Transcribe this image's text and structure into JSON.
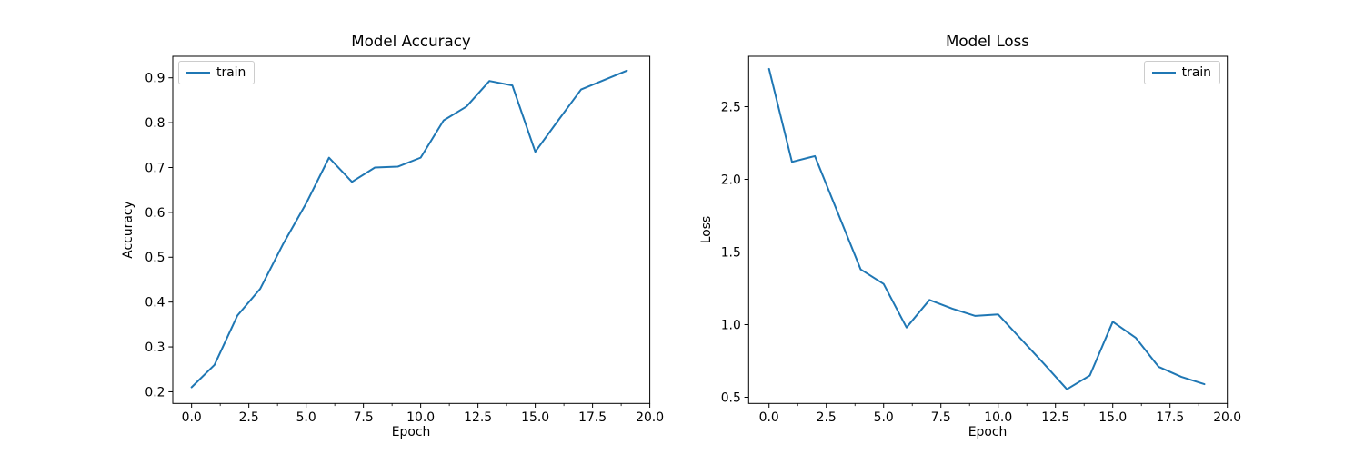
{
  "figure": {
    "background_color": "#ffffff",
    "text_color": "#000000",
    "accent_line_color": "#1f77b4"
  },
  "chart_data": [
    {
      "type": "line",
      "title": "Model Accuracy",
      "xlabel": "Epoch",
      "ylabel": "Accuracy",
      "legend_position": "top-left",
      "grid": false,
      "line_color": "#1f77b4",
      "x": [
        0,
        1,
        2,
        3,
        4,
        5,
        6,
        7,
        8,
        9,
        10,
        11,
        12,
        13,
        14,
        15,
        16,
        17,
        18,
        19
      ],
      "series": [
        {
          "name": "train",
          "values": [
            0.21,
            0.26,
            0.37,
            0.43,
            0.53,
            0.62,
            0.722,
            0.668,
            0.7,
            0.702,
            0.722,
            0.805,
            0.836,
            0.893,
            0.883,
            0.735,
            0.805,
            0.874,
            0.895,
            0.916
          ]
        }
      ],
      "xlim": [
        -0.82,
        20.0
      ],
      "ylim": [
        0.174,
        0.948
      ],
      "x_ticks": [
        0,
        2.5,
        5,
        7.5,
        10,
        12.5,
        15,
        17.5,
        20
      ],
      "x_tick_labels": [
        "0.0",
        "2.5",
        "5.0",
        "7.5",
        "10.0",
        "12.5",
        "15.0",
        "17.5",
        "20.0"
      ],
      "x_minor_tick_step": 1.25,
      "y_ticks": [
        0.2,
        0.3,
        0.4,
        0.5,
        0.6,
        0.7,
        0.8,
        0.9
      ],
      "y_tick_labels": [
        "0.2",
        "0.3",
        "0.4",
        "0.5",
        "0.6",
        "0.7",
        "0.8",
        "0.9"
      ]
    },
    {
      "type": "line",
      "title": "Model Loss",
      "xlabel": "Epoch",
      "ylabel": "Loss",
      "legend_position": "top-right",
      "grid": false,
      "line_color": "#1f77b4",
      "x": [
        0,
        1,
        2,
        3,
        4,
        5,
        6,
        7,
        8,
        9,
        10,
        11,
        12,
        13,
        14,
        15,
        16,
        17,
        18,
        19
      ],
      "series": [
        {
          "name": "train",
          "values": [
            2.76,
            2.12,
            2.16,
            1.77,
            1.38,
            1.28,
            0.98,
            1.17,
            1.11,
            1.06,
            1.07,
            0.9,
            0.73,
            0.555,
            0.65,
            1.02,
            0.91,
            0.71,
            0.64,
            0.59
          ]
        }
      ],
      "xlim": [
        -0.89,
        20.0
      ],
      "ylim": [
        0.4575,
        2.847
      ],
      "x_ticks": [
        0,
        2.5,
        5,
        7.5,
        10,
        12.5,
        15,
        17.5,
        20
      ],
      "x_tick_labels": [
        "0.0",
        "2.5",
        "5.0",
        "7.5",
        "10.0",
        "12.5",
        "15.0",
        "17.5",
        "20.0"
      ],
      "x_minor_tick_step": 1.25,
      "y_ticks": [
        0.5,
        1.0,
        1.5,
        2.0,
        2.5
      ],
      "y_tick_labels": [
        "0.5",
        "1.0",
        "1.5",
        "2.0",
        "2.5"
      ]
    }
  ]
}
